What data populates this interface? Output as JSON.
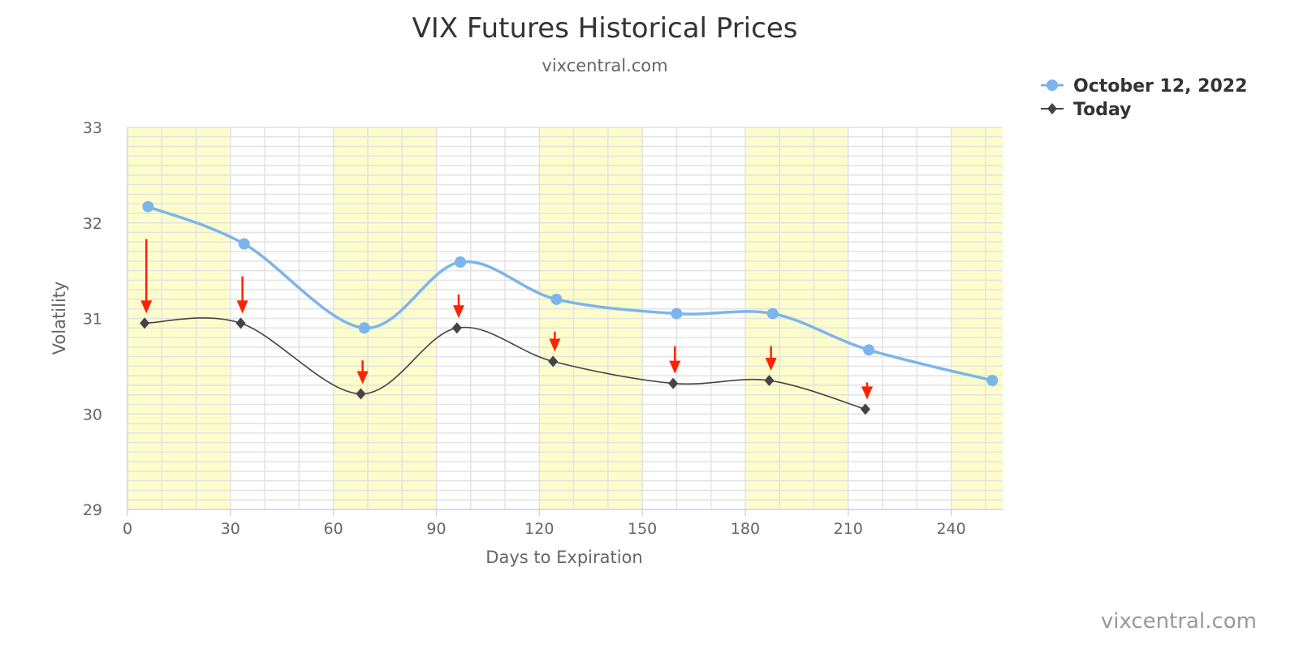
{
  "chart_data": {
    "type": "line",
    "title": "VIX Futures Historical Prices",
    "subtitle": "vixcentral.com",
    "xlabel": "Days to Expiration",
    "ylabel": "Volatility",
    "xlim": [
      0,
      255
    ],
    "ylim": [
      29,
      33
    ],
    "x_ticks": [
      0,
      30,
      60,
      90,
      120,
      150,
      180,
      210,
      240
    ],
    "y_ticks": [
      29,
      30,
      31,
      32,
      33
    ],
    "grid": true,
    "legend_position": "top-right",
    "shaded_x_bands": [
      [
        0,
        30
      ],
      [
        60,
        90
      ],
      [
        120,
        150
      ],
      [
        180,
        210
      ],
      [
        240,
        255
      ]
    ],
    "series": [
      {
        "name": "October 12, 2022",
        "color": "#7cb5ec",
        "marker": "circle",
        "x": [
          6,
          34,
          69,
          97,
          125,
          160,
          188,
          216,
          252
        ],
        "y": [
          32.17,
          31.78,
          30.9,
          31.59,
          31.2,
          31.05,
          31.05,
          30.67,
          30.35
        ]
      },
      {
        "name": "Today",
        "color": "#434348",
        "marker": "diamond",
        "x": [
          5,
          33,
          68,
          96,
          124,
          159,
          187,
          215
        ],
        "y": [
          30.95,
          30.95,
          30.21,
          30.9,
          30.55,
          30.32,
          30.35,
          30.05
        ]
      }
    ],
    "annotation_color": "#ff2200"
  },
  "credit": "vixcentral.com"
}
